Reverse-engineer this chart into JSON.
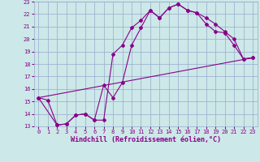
{
  "xlabel": "Windchill (Refroidissement éolien,°C)",
  "bg_color": "#cce8e8",
  "line_color": "#880088",
  "grid_color": "#99aacc",
  "xlim": [
    -0.5,
    23.5
  ],
  "ylim": [
    13,
    23
  ],
  "yticks": [
    13,
    14,
    15,
    16,
    17,
    18,
    19,
    20,
    21,
    22,
    23
  ],
  "xticks": [
    0,
    1,
    2,
    3,
    4,
    5,
    6,
    7,
    8,
    9,
    10,
    11,
    12,
    13,
    14,
    15,
    16,
    17,
    18,
    19,
    20,
    21,
    22,
    23
  ],
  "line1_x": [
    0,
    1,
    2,
    3,
    4,
    5,
    6,
    7,
    8,
    9,
    10,
    11,
    12,
    13,
    14,
    15,
    16,
    17,
    18,
    19,
    20,
    21,
    22,
    23
  ],
  "line1_y": [
    15.3,
    15.1,
    13.1,
    13.2,
    13.9,
    14.0,
    13.5,
    13.5,
    18.8,
    19.5,
    20.9,
    21.5,
    22.3,
    21.7,
    22.5,
    22.8,
    22.3,
    22.1,
    21.7,
    21.2,
    20.6,
    20.0,
    18.4,
    18.5
  ],
  "line2_x": [
    0,
    2,
    3,
    4,
    5,
    6,
    7,
    8,
    9,
    10,
    11,
    12,
    13,
    14,
    15,
    16,
    17,
    18,
    19,
    20,
    21,
    22,
    23
  ],
  "line2_y": [
    15.3,
    13.1,
    13.2,
    13.9,
    14.0,
    13.5,
    16.3,
    15.3,
    16.5,
    19.5,
    20.9,
    22.3,
    21.7,
    22.5,
    22.8,
    22.3,
    22.1,
    21.2,
    20.6,
    20.5,
    19.5,
    18.4,
    18.5
  ],
  "line3_x": [
    0,
    23
  ],
  "line3_y": [
    15.3,
    18.5
  ],
  "tick_fontsize": 5,
  "xlabel_fontsize": 6
}
